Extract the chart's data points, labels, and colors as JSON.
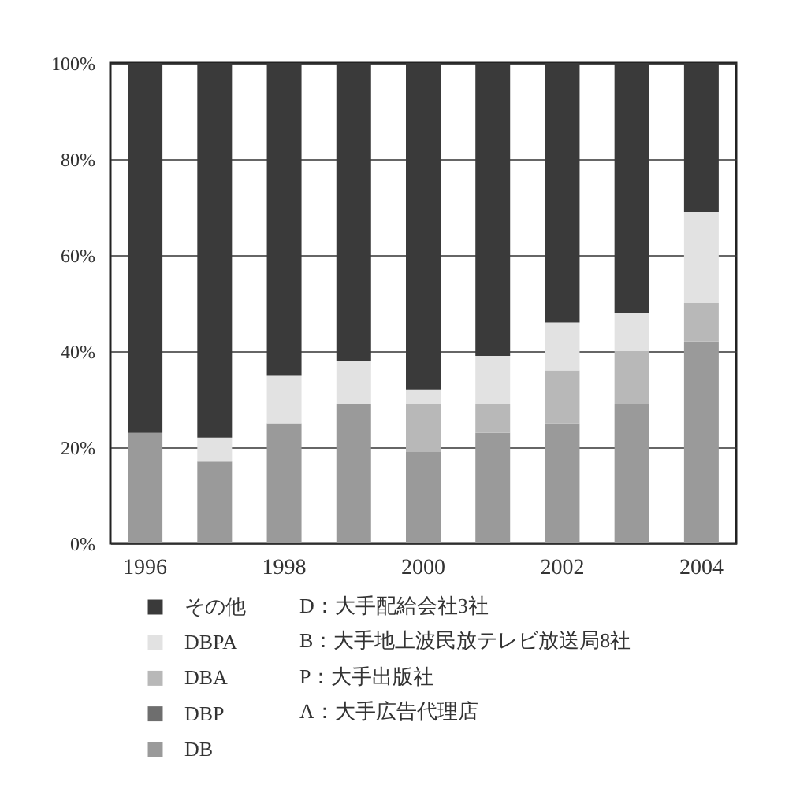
{
  "chart_data": {
    "type": "bar",
    "stacked": true,
    "categories": [
      "1996",
      null,
      "1998",
      null,
      "2000",
      null,
      "2002",
      null,
      "2004"
    ],
    "series": [
      {
        "name": "DB",
        "color": "#9a9a9a",
        "values": [
          23,
          17,
          25,
          29,
          19,
          23,
          25,
          29,
          42
        ]
      },
      {
        "name": "DBP",
        "color": "#6e6e6e",
        "values": [
          0,
          0,
          0,
          0,
          0,
          0,
          0,
          0,
          0
        ]
      },
      {
        "name": "DBA",
        "color": "#b8b8b8",
        "values": [
          0,
          0,
          0,
          0,
          10,
          6,
          11,
          11,
          8
        ]
      },
      {
        "name": "DBPA",
        "color": "#e2e2e2",
        "values": [
          0,
          5,
          10,
          9,
          3,
          10,
          10,
          8,
          19
        ]
      },
      {
        "name": "その他",
        "color": "#3a3a3a",
        "values": [
          77,
          78,
          65,
          62,
          68,
          61,
          54,
          52,
          31
        ]
      }
    ],
    "ylim": [
      0,
      100
    ],
    "yticks": [
      {
        "value": 0,
        "label": "0%"
      },
      {
        "value": 20,
        "label": "20%"
      },
      {
        "value": 40,
        "label": "40%"
      },
      {
        "value": 60,
        "label": "60%"
      },
      {
        "value": 80,
        "label": "80%"
      },
      {
        "value": 100,
        "label": "100%"
      }
    ],
    "grid": "y",
    "legend": "bottom left",
    "annotations": [
      "D：大手配給会社3社",
      "B：大手地上波民放テレビ放送局8社",
      "P：大手出版社",
      "A：大手広告代理店"
    ]
  }
}
